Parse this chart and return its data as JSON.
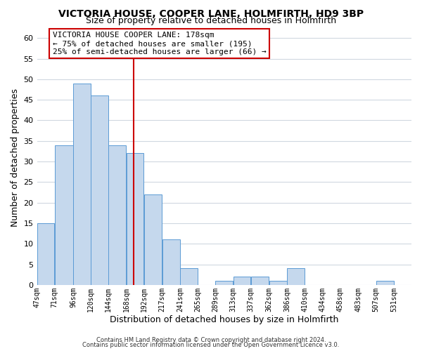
{
  "title": "VICTORIA HOUSE, COOPER LANE, HOLMFIRTH, HD9 3BP",
  "subtitle": "Size of property relative to detached houses in Holmfirth",
  "xlabel": "Distribution of detached houses by size in Holmfirth",
  "ylabel": "Number of detached properties",
  "bar_edges": [
    47,
    71,
    96,
    120,
    144,
    168,
    192,
    217,
    241,
    265,
    289,
    313,
    337,
    362,
    386,
    410,
    434,
    458,
    483,
    507,
    531
  ],
  "bar_heights": [
    15,
    34,
    49,
    46,
    34,
    32,
    22,
    11,
    4,
    0,
    1,
    2,
    2,
    1,
    4,
    0,
    0,
    0,
    0,
    1
  ],
  "bar_color": "#c5d8ed",
  "bar_edgecolor": "#5b9bd5",
  "reference_line_x": 178,
  "reference_line_color": "#cc0000",
  "ylim": [
    0,
    62
  ],
  "yticks": [
    0,
    5,
    10,
    15,
    20,
    25,
    30,
    35,
    40,
    45,
    50,
    55,
    60
  ],
  "xlim": [
    47,
    555
  ],
  "tick_labels": [
    "47sqm",
    "71sqm",
    "96sqm",
    "120sqm",
    "144sqm",
    "168sqm",
    "192sqm",
    "217sqm",
    "241sqm",
    "265sqm",
    "289sqm",
    "313sqm",
    "337sqm",
    "362sqm",
    "386sqm",
    "410sqm",
    "434sqm",
    "458sqm",
    "483sqm",
    "507sqm",
    "531sqm"
  ],
  "annotation_title": "VICTORIA HOUSE COOPER LANE: 178sqm",
  "annotation_line1": "← 75% of detached houses are smaller (195)",
  "annotation_line2": "25% of semi-detached houses are larger (66) →",
  "footer_line1": "Contains HM Land Registry data © Crown copyright and database right 2024.",
  "footer_line2": "Contains public sector information licensed under the Open Government Licence v3.0.",
  "background_color": "#ffffff",
  "plot_background": "#ffffff",
  "grid_color": "#d0d8e0",
  "title_fontsize": 10,
  "subtitle_fontsize": 9,
  "annotation_box_edgecolor": "#cc0000",
  "annotation_box_facecolor": "#ffffff"
}
